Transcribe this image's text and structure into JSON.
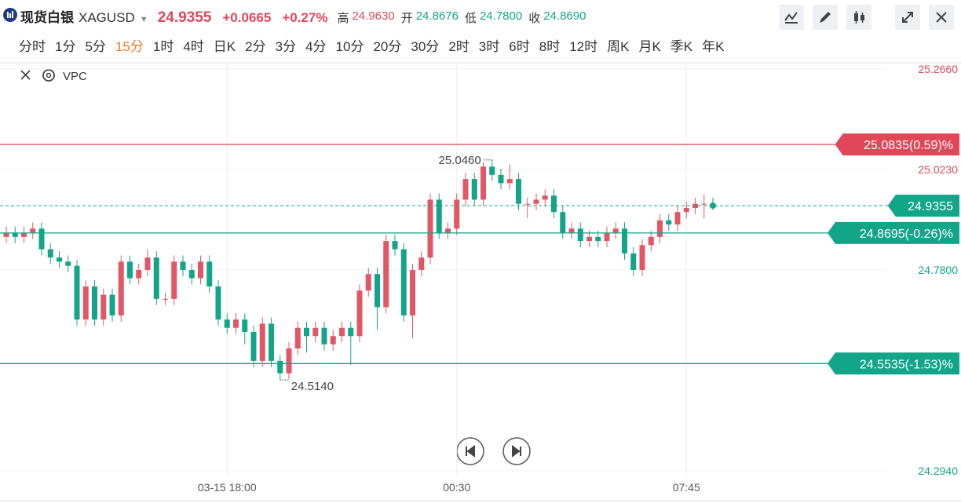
{
  "header": {
    "name": "现货白银",
    "symbol": "XAGUSD",
    "price": "24.9355",
    "change": "+0.0665",
    "change_pct": "+0.27%",
    "stats": [
      {
        "label": "高",
        "value": "24.9630"
      },
      {
        "label": "开",
        "value": "24.8676"
      },
      {
        "label": "低",
        "value": "24.7800"
      },
      {
        "label": "收",
        "value": "24.8690"
      }
    ]
  },
  "timeframes": {
    "items": [
      "分时",
      "1分",
      "5分",
      "15分",
      "1时",
      "4时",
      "日K",
      "2分",
      "3分",
      "4分",
      "10分",
      "20分",
      "30分",
      "2时",
      "3时",
      "6时",
      "8时",
      "12时",
      "周K",
      "月K",
      "季K",
      "年K"
    ],
    "active": 3
  },
  "indicator": "VPC",
  "chart_data": {
    "type": "candlestick",
    "categories": [
      null,
      null,
      null,
      null,
      null,
      null,
      null,
      null,
      null,
      null,
      null,
      null,
      null,
      null,
      null,
      null,
      null,
      null,
      null,
      null,
      null,
      null,
      null,
      null,
      null,
      "03-15 18:00",
      null,
      null,
      null,
      null,
      null,
      null,
      null,
      null,
      null,
      null,
      null,
      null,
      null,
      null,
      null,
      null,
      null,
      null,
      null,
      null,
      null,
      null,
      null,
      null,
      null,
      "00:30",
      null,
      null,
      null,
      null,
      null,
      null,
      null,
      null,
      null,
      null,
      null,
      null,
      null,
      null,
      null,
      null,
      null,
      null,
      null,
      null,
      null,
      null,
      null,
      null,
      null,
      "07:45",
      null,
      null,
      null
    ],
    "open": [
      24.86,
      24.87,
      24.86,
      24.87,
      24.88,
      24.83,
      24.81,
      24.8,
      24.79,
      24.66,
      24.74,
      24.66,
      24.72,
      24.67,
      24.8,
      24.76,
      24.78,
      24.81,
      24.71,
      24.71,
      24.8,
      24.78,
      24.76,
      24.8,
      24.74,
      24.66,
      24.64,
      24.66,
      24.63,
      24.56,
      24.65,
      24.56,
      24.53,
      24.59,
      24.64,
      24.62,
      24.64,
      24.6,
      24.62,
      24.64,
      24.62,
      24.73,
      24.77,
      24.69,
      24.85,
      24.83,
      24.67,
      24.78,
      24.81,
      24.95,
      24.87,
      24.88,
      24.95,
      25.0,
      24.95,
      25.03,
      25.01,
      24.99,
      25.0,
      24.94,
      24.94,
      24.95,
      24.96,
      24.92,
      24.87,
      24.88,
      24.85,
      24.86,
      24.85,
      24.87,
      24.88,
      24.82,
      24.78,
      24.84,
      24.86,
      24.9,
      24.89,
      24.92,
      24.93,
      24.94,
      24.94
    ],
    "close": [
      24.87,
      24.86,
      24.87,
      24.88,
      24.83,
      24.81,
      24.8,
      24.79,
      24.66,
      24.74,
      24.66,
      24.72,
      24.67,
      24.8,
      24.76,
      24.78,
      24.81,
      24.71,
      24.71,
      24.8,
      24.78,
      24.76,
      24.8,
      24.74,
      24.66,
      24.64,
      24.66,
      24.63,
      24.56,
      24.65,
      24.56,
      24.53,
      24.59,
      24.64,
      24.62,
      24.64,
      24.6,
      24.62,
      24.64,
      24.62,
      24.73,
      24.77,
      24.69,
      24.85,
      24.83,
      24.67,
      24.78,
      24.81,
      24.95,
      24.87,
      24.88,
      24.95,
      25.0,
      24.95,
      25.03,
      25.01,
      24.99,
      25.0,
      24.94,
      24.94,
      24.95,
      24.96,
      24.92,
      24.87,
      24.88,
      24.85,
      24.86,
      24.85,
      24.87,
      24.88,
      24.82,
      24.78,
      24.84,
      24.86,
      24.9,
      24.89,
      24.92,
      24.93,
      24.94,
      24.94,
      24.9355
    ],
    "high": [
      24.885,
      24.885,
      24.885,
      24.895,
      24.895,
      24.845,
      24.825,
      24.815,
      24.805,
      24.755,
      24.755,
      24.735,
      24.735,
      24.815,
      24.815,
      24.795,
      24.83,
      24.825,
      24.725,
      24.815,
      24.815,
      24.795,
      24.815,
      24.815,
      24.755,
      24.675,
      24.675,
      24.675,
      24.645,
      24.665,
      24.665,
      24.575,
      24.605,
      24.655,
      24.655,
      24.655,
      24.655,
      24.635,
      24.655,
      24.655,
      24.745,
      24.785,
      24.785,
      24.865,
      24.865,
      24.845,
      24.795,
      24.825,
      24.965,
      24.965,
      24.895,
      24.965,
      25.015,
      25.015,
      25.04,
      25.046,
      25.025,
      25.035,
      25.015,
      24.955,
      24.965,
      24.975,
      24.975,
      24.935,
      24.895,
      24.895,
      24.875,
      24.875,
      24.885,
      24.895,
      24.895,
      24.835,
      24.855,
      24.875,
      24.915,
      24.915,
      24.935,
      24.945,
      24.955,
      24.963,
      24.955
    ],
    "low": [
      24.845,
      24.845,
      24.845,
      24.855,
      24.815,
      24.795,
      24.785,
      24.775,
      24.645,
      24.645,
      24.645,
      24.645,
      24.655,
      24.655,
      24.745,
      24.745,
      24.765,
      24.695,
      24.695,
      24.695,
      24.765,
      24.745,
      24.745,
      24.725,
      24.645,
      24.625,
      24.625,
      24.6,
      24.545,
      24.545,
      24.545,
      24.514,
      24.515,
      24.575,
      24.58,
      24.605,
      24.585,
      24.585,
      24.605,
      24.55,
      24.605,
      24.715,
      24.635,
      24.675,
      24.815,
      24.655,
      24.615,
      24.765,
      24.795,
      24.855,
      24.855,
      24.865,
      24.935,
      24.935,
      24.935,
      24.995,
      24.975,
      24.975,
      24.925,
      24.905,
      24.925,
      24.935,
      24.905,
      24.855,
      24.855,
      24.835,
      24.835,
      24.835,
      24.835,
      24.855,
      24.805,
      24.765,
      24.765,
      24.825,
      24.845,
      24.875,
      24.875,
      24.905,
      24.915,
      24.905,
      24.925
    ],
    "up_color": "#e25666",
    "down_color": "#12a58a",
    "ylim": [
      24.294,
      25.266
    ],
    "yticks": [
      {
        "value": 24.294,
        "label": "24.2940"
      },
      {
        "value": 24.78,
        "label": "24.7800"
      },
      {
        "value": 25.023,
        "label": "25.0230"
      },
      {
        "value": 25.266,
        "label": "25.2660"
      }
    ],
    "grid": true,
    "annotations": [
      {
        "index": 55,
        "value": 25.046,
        "label": "25.0460"
      },
      {
        "index": 31,
        "value": 24.514,
        "label": "24.5140"
      }
    ],
    "price_lines": [
      {
        "value": 25.0835,
        "label": "25.0835(0.59)%",
        "color": "#e0485a",
        "style": "solid"
      },
      {
        "value": 24.9355,
        "label": "24.9355",
        "color": "#12a58a",
        "style": "dashed"
      },
      {
        "value": 24.8695,
        "label": "24.8695(-0.26)%",
        "color": "#12a58a",
        "style": "solid"
      },
      {
        "value": 24.5535,
        "label": "24.5535(-1.53)%",
        "color": "#12a58a",
        "style": "solid"
      }
    ]
  }
}
